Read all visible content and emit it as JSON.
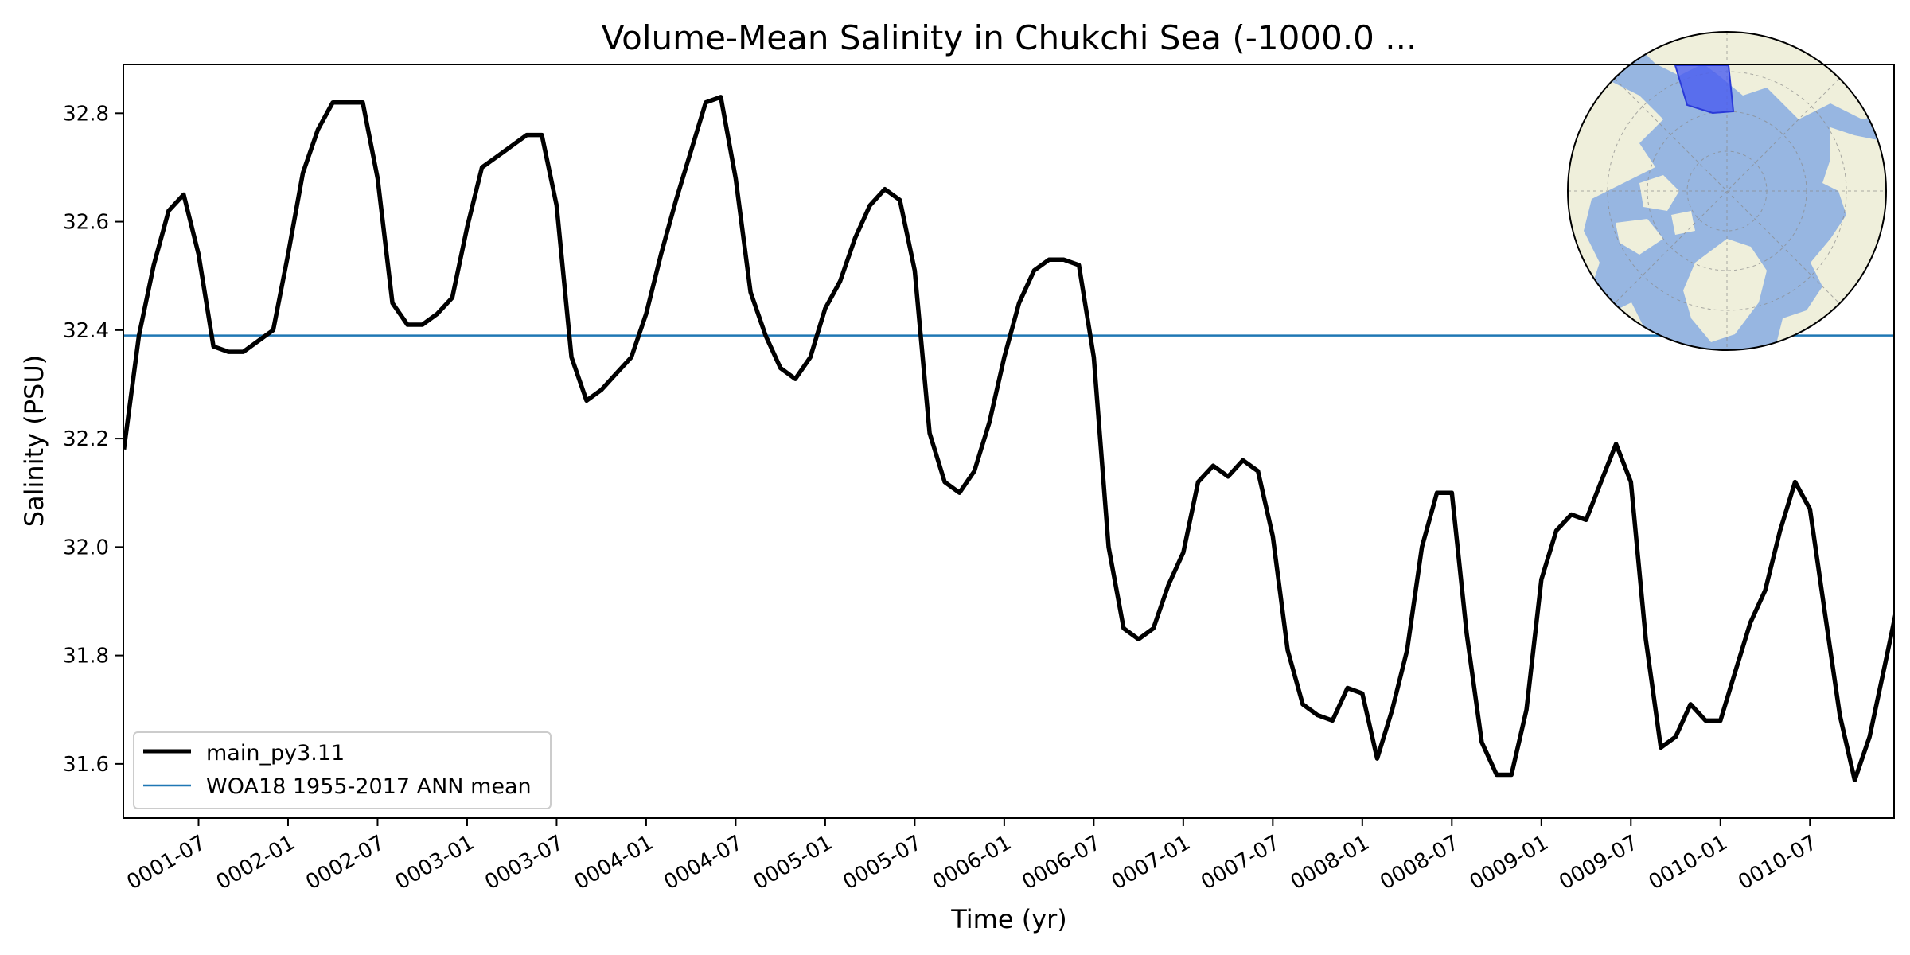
{
  "chart_data": {
    "type": "line",
    "title": "Volume-Mean Salinity in Chukchi Sea (-1000.0 ...",
    "xlabel": "Time (yr)",
    "ylabel": "Salinity (PSU)",
    "xlim": [
      0.08,
      9.97
    ],
    "ylim": [
      31.5,
      32.89
    ],
    "x_ticks": [
      {
        "value": 0.5,
        "label": "0001-07"
      },
      {
        "value": 1.0,
        "label": "0002-01"
      },
      {
        "value": 1.5,
        "label": "0002-07"
      },
      {
        "value": 2.0,
        "label": "0003-01"
      },
      {
        "value": 2.5,
        "label": "0003-07"
      },
      {
        "value": 3.0,
        "label": "0004-01"
      },
      {
        "value": 3.5,
        "label": "0004-07"
      },
      {
        "value": 4.0,
        "label": "0005-01"
      },
      {
        "value": 4.5,
        "label": "0005-07"
      },
      {
        "value": 5.0,
        "label": "0006-01"
      },
      {
        "value": 5.5,
        "label": "0006-07"
      },
      {
        "value": 6.0,
        "label": "0007-01"
      },
      {
        "value": 6.5,
        "label": "0007-07"
      },
      {
        "value": 7.0,
        "label": "0008-01"
      },
      {
        "value": 7.5,
        "label": "0008-07"
      },
      {
        "value": 8.0,
        "label": "0009-01"
      },
      {
        "value": 8.5,
        "label": "0009-07"
      },
      {
        "value": 9.0,
        "label": "0010-01"
      },
      {
        "value": 9.5,
        "label": "0010-07"
      }
    ],
    "y_ticks": [
      {
        "value": 31.6,
        "label": "31.6"
      },
      {
        "value": 31.8,
        "label": "31.8"
      },
      {
        "value": 32.0,
        "label": "32.0"
      },
      {
        "value": 32.2,
        "label": "32.2"
      },
      {
        "value": 32.4,
        "label": "32.4"
      },
      {
        "value": 32.6,
        "label": "32.6"
      },
      {
        "value": 32.8,
        "label": "32.8"
      }
    ],
    "grid": false,
    "legend_position": "lower-left",
    "series": [
      {
        "name": "main_py3.11",
        "color": "#000000",
        "style": "thick-solid",
        "x": [
          0.083,
          0.167,
          0.25,
          0.333,
          0.417,
          0.5,
          0.583,
          0.667,
          0.75,
          0.833,
          0.917,
          1.0,
          1.083,
          1.167,
          1.25,
          1.333,
          1.417,
          1.5,
          1.583,
          1.667,
          1.75,
          1.833,
          1.917,
          2.0,
          2.083,
          2.167,
          2.25,
          2.333,
          2.417,
          2.5,
          2.583,
          2.667,
          2.75,
          2.833,
          2.917,
          3.0,
          3.083,
          3.167,
          3.25,
          3.333,
          3.417,
          3.5,
          3.583,
          3.667,
          3.75,
          3.833,
          3.917,
          4.0,
          4.083,
          4.167,
          4.25,
          4.333,
          4.417,
          4.5,
          4.583,
          4.667,
          4.75,
          4.833,
          4.917,
          5.0,
          5.083,
          5.167,
          5.25,
          5.333,
          5.417,
          5.5,
          5.583,
          5.667,
          5.75,
          5.833,
          5.917,
          6.0,
          6.083,
          6.167,
          6.25,
          6.333,
          6.417,
          6.5,
          6.583,
          6.667,
          6.75,
          6.833,
          6.917,
          7.0,
          7.083,
          7.167,
          7.25,
          7.333,
          7.417,
          7.5,
          7.583,
          7.667,
          7.75,
          7.833,
          7.917,
          8.0,
          8.083,
          8.167,
          8.25,
          8.333,
          8.417,
          8.5,
          8.583,
          8.667,
          8.75,
          8.833,
          8.917,
          9.0,
          9.083,
          9.167,
          9.25,
          9.333,
          9.417,
          9.5,
          9.583,
          9.667,
          9.75,
          9.833,
          9.917,
          10.0
        ],
        "values": [
          32.18,
          32.39,
          32.52,
          32.62,
          32.65,
          32.54,
          32.37,
          32.36,
          32.36,
          32.38,
          32.4,
          32.54,
          32.69,
          32.77,
          32.82,
          32.82,
          32.82,
          32.68,
          32.45,
          32.41,
          32.41,
          32.43,
          32.46,
          32.59,
          32.7,
          32.72,
          32.74,
          32.76,
          32.76,
          32.63,
          32.35,
          32.27,
          32.29,
          32.32,
          32.35,
          32.43,
          32.54,
          32.64,
          32.73,
          32.82,
          32.83,
          32.68,
          32.47,
          32.39,
          32.33,
          32.31,
          32.35,
          32.44,
          32.49,
          32.57,
          32.63,
          32.66,
          32.64,
          32.51,
          32.21,
          32.12,
          32.1,
          32.14,
          32.23,
          32.35,
          32.45,
          32.51,
          32.53,
          32.53,
          32.52,
          32.35,
          32.0,
          31.85,
          31.83,
          31.85,
          31.93,
          31.99,
          32.12,
          32.15,
          32.13,
          32.16,
          32.14,
          32.02,
          31.81,
          31.71,
          31.69,
          31.68,
          31.74,
          31.73,
          31.61,
          31.7,
          31.81,
          32.0,
          32.1,
          32.1,
          31.84,
          31.64,
          31.58,
          31.58,
          31.7,
          31.94,
          32.03,
          32.06,
          32.05,
          32.12,
          32.19,
          32.12,
          31.83,
          31.63,
          31.65,
          31.71,
          31.68,
          31.68,
          31.77,
          31.86,
          31.92,
          32.03,
          32.12,
          32.07,
          31.88,
          31.69,
          31.57,
          31.65,
          31.78,
          31.91
        ]
      },
      {
        "name": "WOA18 1955-2017 ANN mean",
        "color": "#1f77b4",
        "style": "thin-solid",
        "constant": 32.39
      }
    ]
  },
  "inset_map": {
    "description_icon": "polar-stereographic-globe-icon",
    "ocean_color": "#97b6e1",
    "land_color": "#efefdb",
    "region_color": "#4a5cf0"
  }
}
